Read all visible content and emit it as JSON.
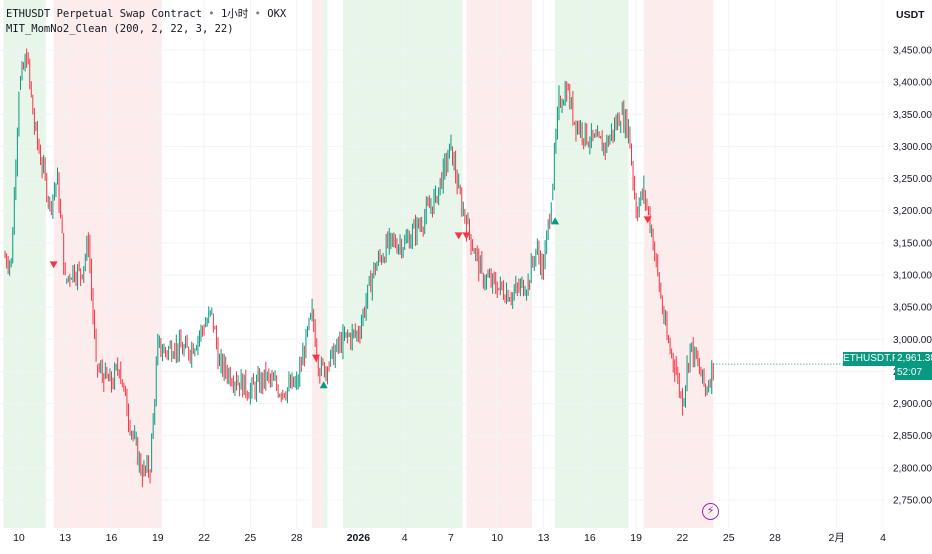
{
  "header": {
    "symbol_title": "ETHUSDT Perpetual Swap Contract",
    "interval": "1小时",
    "exchange": "OKX",
    "separator": "•",
    "indicator": "MIT_MomNo2_Clean (200, 2, 22, 3, 22)"
  },
  "axis": {
    "unit": "USDT",
    "price_ticks": [
      "3,450.00",
      "3,400.00",
      "3,350.00",
      "3,300.00",
      "3,250.00",
      "3,200.00",
      "3,150.00",
      "3,100.00",
      "3,050.00",
      "3,000.00",
      "2,950.00",
      "2,900.00",
      "2,850.00",
      "2,800.00",
      "2,750.00"
    ],
    "time_ticks": [
      "10",
      "13",
      "16",
      "19",
      "22",
      "25",
      "28",
      "2026",
      "4",
      "7",
      "10",
      "13",
      "16",
      "19",
      "22",
      "25",
      "28",
      "2月",
      "4"
    ]
  },
  "last_price": {
    "symbol": "ETHUSDT.P",
    "value": "2,961.38",
    "countdown": "52:07"
  },
  "icons": {
    "flash": "lightning-icon"
  },
  "colors": {
    "up": "#089981",
    "down": "#f23645",
    "bull_zone": "#e8f5e9",
    "bear_zone": "#fdecec",
    "grid": "#f0f3fa",
    "flash": "#9c27b0"
  },
  "chart_data": {
    "type": "line",
    "title": "ETHUSDT Perpetual Swap Contract",
    "ylabel": "USDT",
    "ylim": [
      2720,
      3500
    ],
    "x_unit": "date",
    "x": [
      "2025-12-09",
      "2025-12-09T12",
      "2025-12-10",
      "2025-12-10T12",
      "2025-12-11",
      "2025-12-11T12",
      "2025-12-12",
      "2025-12-12T12",
      "2025-12-13",
      "2025-12-13T12",
      "2025-12-14",
      "2025-12-14T12",
      "2025-12-15",
      "2025-12-15T12",
      "2025-12-16",
      "2025-12-16T12",
      "2025-12-17",
      "2025-12-17T12",
      "2025-12-18",
      "2025-12-18T12",
      "2025-12-19",
      "2025-12-19T12",
      "2025-12-20",
      "2025-12-21",
      "2025-12-22",
      "2025-12-22T12",
      "2025-12-23",
      "2025-12-24",
      "2025-12-25",
      "2025-12-26",
      "2025-12-27",
      "2025-12-28",
      "2025-12-29",
      "2025-12-29T12",
      "2025-12-30",
      "2025-12-31",
      "2026-01-01",
      "2026-01-02",
      "2026-01-03",
      "2026-01-04",
      "2026-01-05",
      "2026-01-06",
      "2026-01-06T12",
      "2026-01-07",
      "2026-01-07T12",
      "2026-01-08",
      "2026-01-09",
      "2026-01-10",
      "2026-01-11",
      "2026-01-12",
      "2026-01-12T12",
      "2026-01-13",
      "2026-01-13T12",
      "2026-01-14",
      "2026-01-14T12",
      "2026-01-15",
      "2026-01-16",
      "2026-01-17",
      "2026-01-18",
      "2026-01-18T12",
      "2026-01-19",
      "2026-01-19T12",
      "2026-01-20",
      "2026-01-20T12",
      "2026-01-21",
      "2026-01-21T12",
      "2026-01-22",
      "2026-01-22T12",
      "2026-01-23",
      "2026-01-23T12",
      "2026-01-24"
    ],
    "series": [
      {
        "values": [
          3130,
          3120,
          3390,
          3440,
          3330,
          3270,
          3210,
          3250,
          3090,
          3110,
          3100,
          3150,
          2960,
          2940,
          2930,
          2960,
          2890,
          2840,
          2790,
          2800,
          2990,
          2980,
          2990,
          2980,
          3020,
          3040,
          2960,
          2940,
          2920,
          2940,
          2920,
          2930,
          3040,
          2950,
          2960,
          3000,
          3010,
          3110,
          3150,
          3150,
          3180,
          3220,
          3260,
          3300,
          3230,
          3180,
          3100,
          3080,
          3070,
          3090,
          3140,
          3110,
          3220,
          3370,
          3390,
          3340,
          3310,
          3300,
          3350,
          3330,
          3200,
          3230,
          3170,
          3080,
          3000,
          2960,
          2900,
          2990,
          2960,
          2920,
          2961
        ]
      }
    ],
    "zones": [
      {
        "type": "bull",
        "from": "2025-12-09",
        "to": "2025-12-11T18"
      },
      {
        "type": "bear",
        "from": "2025-12-12T06",
        "to": "2025-12-19T06"
      },
      {
        "type": "bear",
        "from": "2025-12-29",
        "to": "2025-12-29T18"
      },
      {
        "type": "bull",
        "from": "2025-12-29T18",
        "to": "2025-12-30"
      },
      {
        "type": "bull",
        "from": "2025-12-31",
        "to": "2026-01-07T18"
      },
      {
        "type": "bear",
        "from": "2026-01-08",
        "to": "2026-01-12T06"
      },
      {
        "type": "bull",
        "from": "2026-01-13T18",
        "to": "2026-01-18T12"
      },
      {
        "type": "bear",
        "from": "2026-01-19T12",
        "to": "2026-01-24"
      }
    ],
    "signals": [
      {
        "type": "sell",
        "x": "2025-12-12T06",
        "y": 3115
      },
      {
        "type": "sell",
        "x": "2025-12-29T06",
        "y": 2970
      },
      {
        "type": "buy",
        "x": "2025-12-29T18",
        "y": 2930
      },
      {
        "type": "sell",
        "x": "2026-01-07T12",
        "y": 3160
      },
      {
        "type": "sell",
        "x": "2026-01-08",
        "y": 3160
      },
      {
        "type": "buy",
        "x": "2026-01-13T18",
        "y": 3185
      },
      {
        "type": "sell",
        "x": "2026-01-19T18",
        "y": 3185
      }
    ],
    "grid": true
  }
}
